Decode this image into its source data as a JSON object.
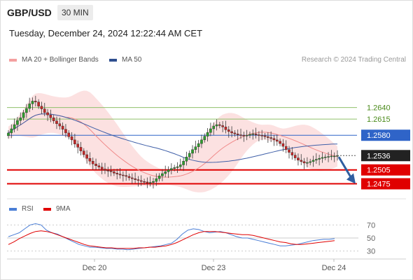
{
  "header": {
    "symbol": "GBP/USD",
    "timeframe": "30 MIN",
    "datetime": "Tuesday, December 24, 2024 12:22:44 AM CET",
    "copyright": "Research © 2024 Trading Central"
  },
  "legend": {
    "ma20": "MA 20 + Bollinger Bands",
    "ma50": "MA 50",
    "rsi": "RSI",
    "nine_ma": "9MA"
  },
  "colors": {
    "candle_up": "#2e9e2e",
    "candle_down": "#c62828",
    "bollinger_fill": "#fcdede",
    "ma20": "#f08a8a",
    "ma50": "#3f5fa8",
    "pivot_line": "#2f64c8",
    "support_line": "#e00000",
    "resistance_line": "#8fc06a",
    "resistance_label": "#4a8a1a",
    "arrow": "#2f5ea0",
    "rsi": "#4a7ed6",
    "rsi_ma": "#e00000"
  },
  "chart_data": [
    {
      "type": "candlestick",
      "title": "GBP/USD",
      "ylim": [
        1.2444,
        1.2694
      ],
      "x_labels": [
        "Dec 20",
        "Dec 23",
        "Dec 24"
      ],
      "current_price": {
        "value": 1.2536,
        "label": "1.2536"
      },
      "levels": [
        {
          "value": 1.264,
          "label": "1.2640",
          "kind": "resistance"
        },
        {
          "value": 1.2615,
          "label": "1.2615",
          "kind": "resistance"
        },
        {
          "value": 1.258,
          "label": "1.2580",
          "kind": "pivot"
        },
        {
          "value": 1.2505,
          "label": "1.2505",
          "kind": "support"
        },
        {
          "value": 1.2475,
          "label": "1.2475",
          "kind": "support"
        }
      ],
      "closes": [
        1.2585,
        1.2594,
        1.2603,
        1.2612,
        1.2618,
        1.2629,
        1.2638,
        1.2648,
        1.2654,
        1.2652,
        1.2643,
        1.2637,
        1.2629,
        1.2624,
        1.2618,
        1.2611,
        1.2605,
        1.26,
        1.2593,
        1.2585,
        1.2577,
        1.257,
        1.2561,
        1.2554,
        1.2546,
        1.2538,
        1.253,
        1.2524,
        1.2518,
        1.2514,
        1.2511,
        1.2507,
        1.2504,
        1.2503,
        1.2501,
        1.2498,
        1.2496,
        1.2494,
        1.2493,
        1.2491,
        1.2488,
        1.2486,
        1.2484,
        1.2482,
        1.248,
        1.2479,
        1.2477,
        1.2478,
        1.248,
        1.2486,
        1.2492,
        1.2497,
        1.2501,
        1.2505,
        1.2508,
        1.251,
        1.2512,
        1.2516,
        1.2524,
        1.2533,
        1.2541,
        1.2549,
        1.2555,
        1.2562,
        1.257,
        1.2578,
        1.2586,
        1.2594,
        1.26,
        1.2603,
        1.2601,
        1.2598,
        1.2592,
        1.2588,
        1.2585,
        1.2583,
        1.2581,
        1.258,
        1.2579,
        1.258,
        1.2582,
        1.2583,
        1.2581,
        1.258,
        1.2579,
        1.2577,
        1.2575,
        1.2573,
        1.257,
        1.2567,
        1.2562,
        1.2556,
        1.2549,
        1.2543,
        1.2537,
        1.2531,
        1.2526,
        1.2523,
        1.252,
        1.2521,
        1.2523,
        1.2526,
        1.2528,
        1.253,
        1.2532,
        1.2533,
        1.2534,
        1.2535,
        1.2535,
        1.2536
      ]
    },
    {
      "type": "line",
      "title": "RSI",
      "ylim": [
        20,
        80
      ],
      "y_ticks": [
        70,
        50,
        30
      ],
      "series": [
        {
          "name": "RSI",
          "values": [
            52,
            55,
            58,
            64,
            70,
            72,
            70,
            62,
            58,
            56,
            52,
            48,
            44,
            40,
            38,
            36,
            36,
            35,
            34,
            34,
            33,
            33,
            32,
            33,
            34,
            35,
            36,
            37,
            38,
            40,
            42,
            48,
            56,
            62,
            64,
            63,
            60,
            58,
            59,
            60,
            58,
            55,
            52,
            50,
            50,
            48,
            46,
            44,
            42,
            40,
            38,
            38,
            39,
            40,
            42,
            44,
            46,
            47,
            48,
            48,
            49
          ]
        },
        {
          "name": "9MA",
          "values": [
            40,
            44,
            49,
            53,
            57,
            60,
            61,
            60,
            58,
            55,
            52,
            49,
            46,
            43,
            40,
            38,
            37,
            36,
            35,
            35,
            34,
            34,
            34,
            34,
            35,
            35,
            36,
            36,
            37,
            38,
            40,
            43,
            47,
            51,
            55,
            58,
            60,
            60,
            60,
            59,
            58,
            57,
            56,
            55,
            55,
            54,
            52,
            50,
            48,
            46,
            44,
            43,
            41,
            40,
            40,
            41,
            42,
            43,
            44,
            45,
            46
          ]
        }
      ]
    }
  ]
}
